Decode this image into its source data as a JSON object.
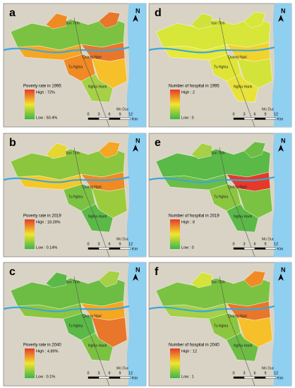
{
  "panels": [
    {
      "letter": "a",
      "legend_title": "Poverty rate in 1995",
      "high": "High : 72%",
      "low": "Low : 50.4%"
    },
    {
      "letter": "d",
      "legend_title": "Number of hospital in 1995",
      "high": "High : 2",
      "low": "Low : 0"
    },
    {
      "letter": "b",
      "legend_title": "Poverty rate in 2019",
      "high": "High : 18.39%",
      "low": "Low : 0.14%"
    },
    {
      "letter": "e",
      "legend_title": "Number of hospital in 2019",
      "high": "High : 8",
      "low": "Low : 0"
    },
    {
      "letter": "c",
      "legend_title": "Poverty rate in 2040",
      "high": "High : 4.89%",
      "low": "Low : 0.1%"
    },
    {
      "letter": "f",
      "legend_title": "Number of hospital in 2040",
      "high": "High : 12",
      "low": "Low : 1"
    }
  ],
  "places": [
    "Son Tinh",
    "Quang Ngai",
    "Tu Nghia",
    "Nghia Hanh",
    "Mo Duc"
  ],
  "scale": {
    "ticks": [
      "0",
      "3",
      "6",
      "9",
      "12"
    ],
    "unit": "Km"
  },
  "north": "N"
}
